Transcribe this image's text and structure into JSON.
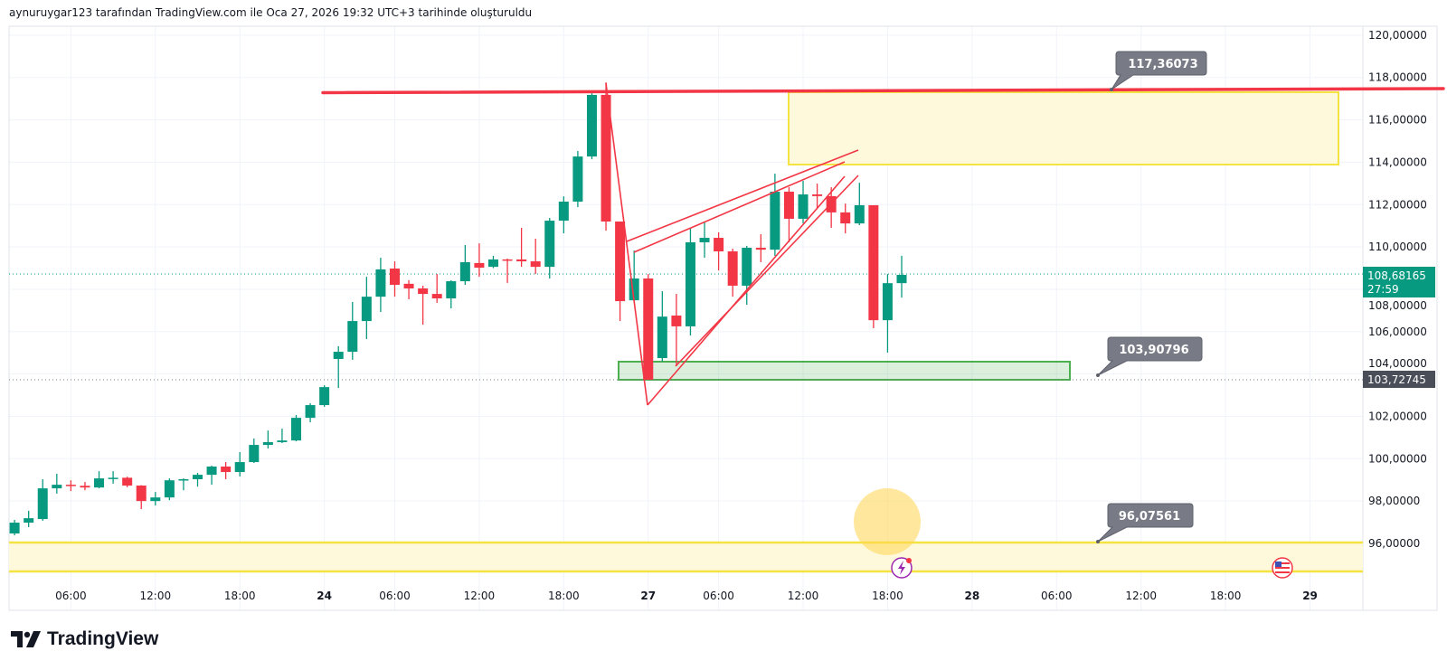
{
  "header": {
    "caption": "aynuruygar123 tarafından TradingView.com ile Oca 27, 2026 19:32 UTC+3 tarihinde oluşturuldu"
  },
  "brand": {
    "logo_text": "TradingView"
  },
  "colors": {
    "up": "#089981",
    "down": "#f23645",
    "yellow": "#f5e342",
    "green_zone": "#4caf50",
    "label_bg": "#787b86"
  },
  "chart_data": {
    "type": "candlestick",
    "title": "",
    "ylim": [
      94,
      120
    ],
    "grid": true,
    "y_ticks": [
      "120,00000",
      "118,00000",
      "116,00000",
      "114,00000",
      "112,00000",
      "110,00000",
      "108,00000",
      "106,00000",
      "104,00000",
      "102,00000",
      "100,00000",
      "98,00000",
      "96,00000"
    ],
    "y_tick_values": [
      120,
      118,
      116,
      114,
      112,
      110,
      108,
      106,
      104,
      102,
      100,
      98,
      96
    ],
    "x_ticks": [
      {
        "label": "06:00",
        "index": 4
      },
      {
        "label": "12:00",
        "index": 10
      },
      {
        "label": "18:00",
        "index": 16
      },
      {
        "label": "24",
        "index": 22,
        "bold": true
      },
      {
        "label": "06:00",
        "index": 27
      },
      {
        "label": "12:00",
        "index": 33
      },
      {
        "label": "18:00",
        "index": 39
      },
      {
        "label": "27",
        "index": 45,
        "bold": true
      },
      {
        "label": "06:00",
        "index": 50
      },
      {
        "label": "12:00",
        "index": 56
      },
      {
        "label": "18:00",
        "index": 62
      },
      {
        "label": "28",
        "index": 68,
        "bold": true
      },
      {
        "label": "06:00",
        "index": 74
      },
      {
        "label": "12:00",
        "index": 80
      },
      {
        "label": "18:00",
        "index": 86
      },
      {
        "label": "29",
        "index": 92,
        "bold": true
      }
    ],
    "ohlc_fields": [
      "open",
      "high",
      "low",
      "close"
    ],
    "candles": [
      [
        96.47,
        97.11,
        96.38,
        96.98
      ],
      [
        96.98,
        97.54,
        96.77,
        97.19
      ],
      [
        97.15,
        99.03,
        97.07,
        98.6
      ],
      [
        98.6,
        99.29,
        98.35,
        98.77
      ],
      [
        98.77,
        98.98,
        98.47,
        98.72
      ],
      [
        98.72,
        98.9,
        98.51,
        98.64
      ],
      [
        98.64,
        99.41,
        98.6,
        99.07
      ],
      [
        99.07,
        99.41,
        98.82,
        99.1
      ],
      [
        99.1,
        99.15,
        98.65,
        98.73
      ],
      [
        98.73,
        98.75,
        97.62,
        98.0
      ],
      [
        98.0,
        98.43,
        97.79,
        98.17
      ],
      [
        98.17,
        99.07,
        98.04,
        98.98
      ],
      [
        98.98,
        99.07,
        98.51,
        99.03
      ],
      [
        99.03,
        99.33,
        98.68,
        99.24
      ],
      [
        99.24,
        99.67,
        98.77,
        99.63
      ],
      [
        99.63,
        99.84,
        99.03,
        99.37
      ],
      [
        99.37,
        100.31,
        99.16,
        99.84
      ],
      [
        99.84,
        100.95,
        99.8,
        100.65
      ],
      [
        100.65,
        101.33,
        100.48,
        100.78
      ],
      [
        100.78,
        101.42,
        100.74,
        100.86
      ],
      [
        100.86,
        102.06,
        100.82,
        101.93
      ],
      [
        101.93,
        102.62,
        101.72,
        102.53
      ],
      [
        102.53,
        103.47,
        102.45,
        103.38
      ],
      [
        104.71,
        105.31,
        103.34,
        105.05
      ],
      [
        105.05,
        107.4,
        104.67,
        106.5
      ],
      [
        106.5,
        108.59,
        105.65,
        107.65
      ],
      [
        107.65,
        109.49,
        106.93,
        108.94
      ],
      [
        108.98,
        109.32,
        107.65,
        108.21
      ],
      [
        108.26,
        108.43,
        107.53,
        108.04
      ],
      [
        108.04,
        108.17,
        106.33,
        107.78
      ],
      [
        107.78,
        108.72,
        107.36,
        107.57
      ],
      [
        107.57,
        108.43,
        107.1,
        108.38
      ],
      [
        108.38,
        110.09,
        108.21,
        109.28
      ],
      [
        109.24,
        110.17,
        108.59,
        109.02
      ],
      [
        109.06,
        109.58,
        109.0,
        109.41
      ],
      [
        109.41,
        109.45,
        108.3,
        109.37
      ],
      [
        109.41,
        110.9,
        109.06,
        109.32
      ],
      [
        109.32,
        110.39,
        108.72,
        109.06
      ],
      [
        109.06,
        111.37,
        108.51,
        111.24
      ],
      [
        111.24,
        112.39,
        110.64,
        112.14
      ],
      [
        112.14,
        114.53,
        111.88,
        114.27
      ],
      [
        114.27,
        117.26,
        114.14,
        117.18
      ],
      [
        117.18,
        117.77,
        110.77,
        111.2
      ],
      [
        111.2,
        111.2,
        106.5,
        107.44
      ],
      [
        107.48,
        109.83,
        107.4,
        108.51
      ],
      [
        108.51,
        108.72,
        103.73,
        103.73
      ],
      [
        104.75,
        107.91,
        104.58,
        106.71
      ],
      [
        106.76,
        107.78,
        104.37,
        106.25
      ],
      [
        106.25,
        110.9,
        105.82,
        110.22
      ],
      [
        110.22,
        111.16,
        109.49,
        110.43
      ],
      [
        110.43,
        110.69,
        108.89,
        109.79
      ],
      [
        109.79,
        109.92,
        107.65,
        108.17
      ],
      [
        108.17,
        110.05,
        107.27,
        109.96
      ],
      [
        109.96,
        110.6,
        109.28,
        109.87
      ],
      [
        109.87,
        113.46,
        109.58,
        112.61
      ],
      [
        112.61,
        112.82,
        110.22,
        111.33
      ],
      [
        111.33,
        113.12,
        111.11,
        112.48
      ],
      [
        112.48,
        112.99,
        111.84,
        112.4
      ],
      [
        112.4,
        112.82,
        110.9,
        111.63
      ],
      [
        111.63,
        112.05,
        110.64,
        111.11
      ],
      [
        111.11,
        113.03,
        111.03,
        111.97
      ],
      [
        111.97,
        111.97,
        106.16,
        106.54
      ],
      [
        106.54,
        108.72,
        105.01,
        108.29
      ],
      [
        108.29,
        109.58,
        107.61,
        108.68
      ]
    ],
    "last_price": {
      "label": "108,68165",
      "countdown": "27:59",
      "value": 108.68165
    },
    "marked_price": {
      "label": "103,72745",
      "value": 103.72745
    },
    "annotations": {
      "resistance_label": "117,36073",
      "support_label": "103,90796",
      "lower_zone_label": "96,07561"
    }
  }
}
